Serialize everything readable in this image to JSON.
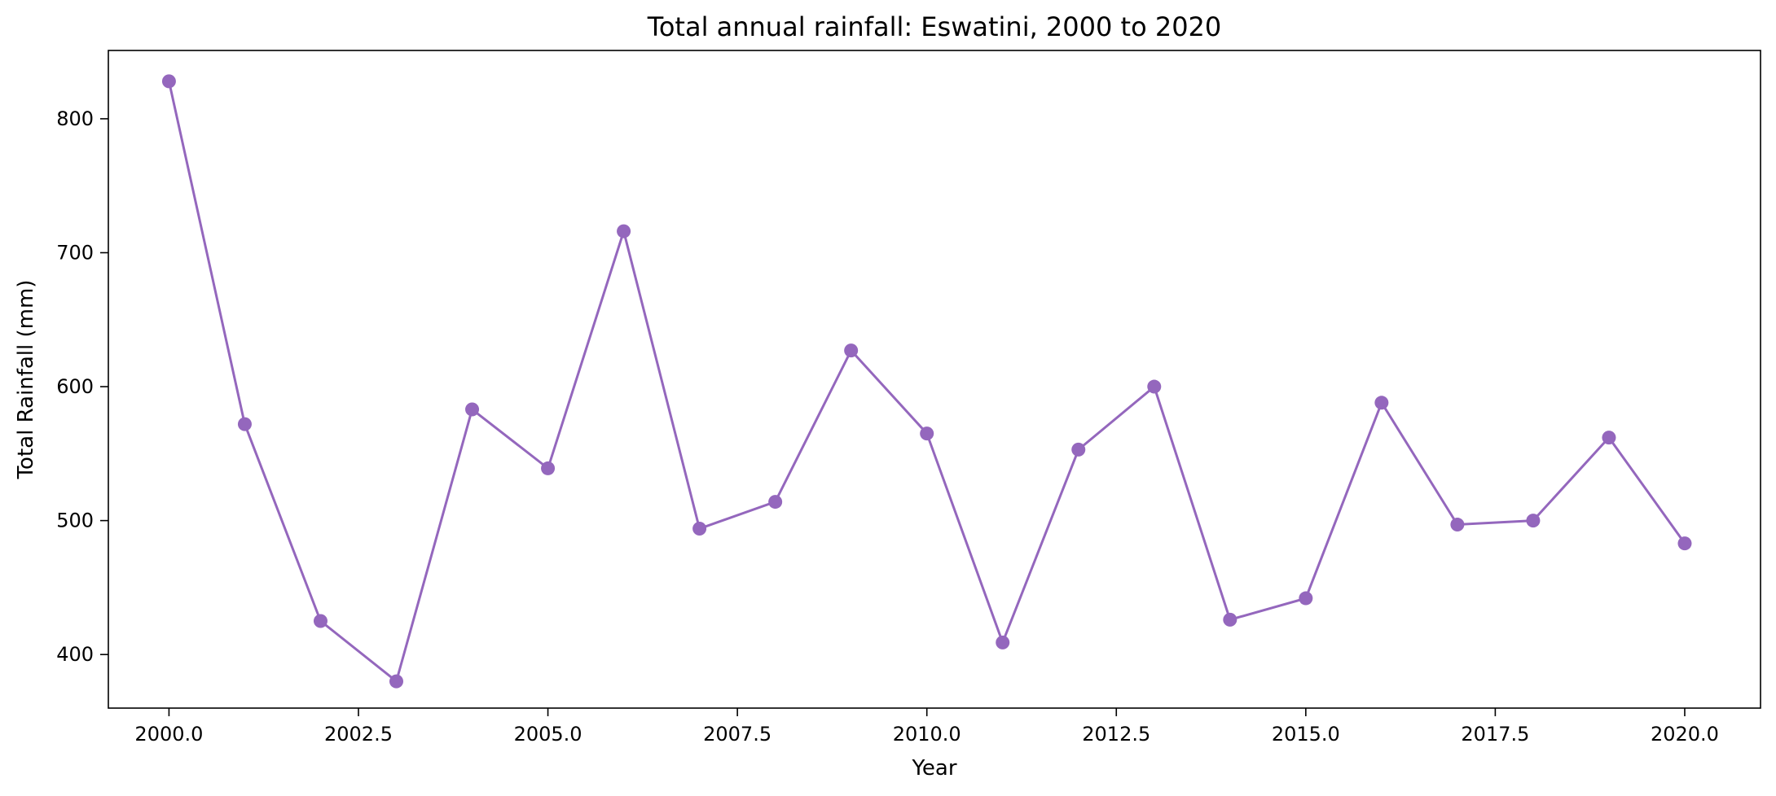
{
  "chart_data": {
    "type": "line",
    "title": "Total annual rainfall: Eswatini, 2000 to 2020",
    "xlabel": "Year",
    "ylabel": "Total Rainfall (mm)",
    "xlim": [
      1999.2,
      2021.0
    ],
    "ylim": [
      360,
      851
    ],
    "xticks": [
      2000.0,
      2002.5,
      2005.0,
      2007.5,
      2010.0,
      2012.5,
      2015.0,
      2017.5,
      2020.0
    ],
    "xtick_labels": [
      "2000.0",
      "2002.5",
      "2005.0",
      "2007.5",
      "2010.0",
      "2012.5",
      "2015.0",
      "2017.5",
      "2020.0"
    ],
    "yticks": [
      400,
      500,
      600,
      700,
      800
    ],
    "ytick_labels": [
      "400",
      "500",
      "600",
      "700",
      "800"
    ],
    "grid": false,
    "series": [
      {
        "color": "#9467bd",
        "marker": "circle",
        "x": [
          2000,
          2001,
          2002,
          2003,
          2004,
          2005,
          2006,
          2007,
          2008,
          2009,
          2010,
          2011,
          2012,
          2013,
          2014,
          2015,
          2016,
          2017,
          2018,
          2019,
          2020
        ],
        "y": [
          828,
          572,
          425,
          380,
          583,
          539,
          716,
          494,
          514,
          627,
          565,
          409,
          553,
          600,
          426,
          442,
          588,
          497,
          500,
          562,
          483
        ]
      }
    ]
  }
}
